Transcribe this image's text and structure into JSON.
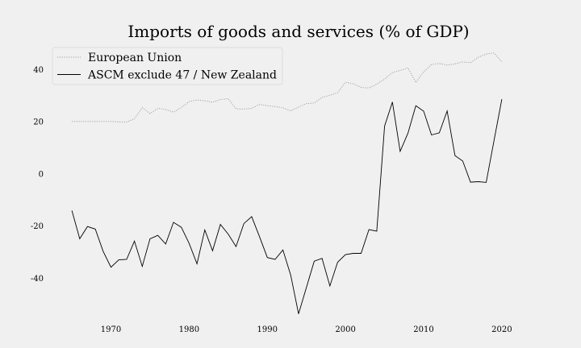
{
  "chart_data": {
    "type": "line",
    "title": "Imports of goods and services (% of GDP)",
    "xlabel": "",
    "ylabel": "",
    "xlim": [
      1962,
      2026
    ],
    "ylim": [
      -57,
      48
    ],
    "x_ticks": [
      1970,
      1980,
      1990,
      2000,
      2010,
      2020
    ],
    "y_ticks": [
      40,
      20,
      0,
      -20,
      -40
    ],
    "grid": false,
    "legend_position": "top-left",
    "x": [
      1965,
      1966,
      1967,
      1968,
      1969,
      1970,
      1971,
      1972,
      1973,
      1974,
      1975,
      1976,
      1977,
      1978,
      1979,
      1980,
      1981,
      1982,
      1983,
      1984,
      1985,
      1986,
      1987,
      1988,
      1989,
      1990,
      1991,
      1992,
      1993,
      1994,
      1995,
      1996,
      1997,
      1998,
      1999,
      2000,
      2001,
      2002,
      2003,
      2004,
      2005,
      2006,
      2007,
      2008,
      2009,
      2010,
      2011,
      2012,
      2013,
      2014,
      2015,
      2016,
      2017,
      2018,
      2019,
      2020
    ],
    "series": [
      {
        "name": "European Union",
        "style": "dotted",
        "color": "#a0a0a0",
        "values": [
          20.0,
          20.0,
          20.0,
          20.0,
          20.0,
          20.0,
          19.8,
          19.7,
          21.0,
          25.3,
          23.0,
          25.0,
          24.6,
          23.5,
          25.3,
          27.6,
          28.2,
          27.9,
          27.3,
          28.4,
          28.7,
          24.8,
          24.7,
          25.0,
          26.5,
          26.0,
          25.7,
          25.2,
          24.0,
          25.5,
          26.8,
          27.0,
          29.2,
          30.0,
          31.0,
          35.0,
          34.4,
          33.0,
          32.8,
          34.3,
          36.2,
          38.7,
          39.5,
          40.5,
          34.9,
          39.0,
          41.8,
          42.2,
          41.6,
          42.0,
          42.8,
          42.5,
          44.6,
          45.8,
          46.2,
          42.8
        ]
      },
      {
        "name": "ASCM exclude 47 / New Zealand",
        "style": "solid",
        "color": "#000000",
        "values": [
          -14.2,
          -25.0,
          -20.3,
          -21.3,
          -29.8,
          -35.9,
          -33.1,
          -32.9,
          -25.9,
          -35.6,
          -25.0,
          -23.7,
          -27.0,
          -18.7,
          -20.6,
          -26.8,
          -34.6,
          -21.6,
          -29.6,
          -19.5,
          -23.2,
          -28.0,
          -19.2,
          -16.5,
          -24.2,
          -32.2,
          -32.9,
          -29.3,
          -39.0,
          -53.8,
          -43.7,
          -33.6,
          -32.5,
          -43.1,
          -34.0,
          -31.1,
          -30.6,
          -30.6,
          -21.5,
          -22.1,
          18.2,
          27.4,
          8.5,
          15.5,
          26.0,
          23.9,
          14.8,
          15.6,
          24.0,
          6.9,
          4.8,
          -3.3,
          -3.1,
          -3.4,
          12.6,
          28.5
        ]
      }
    ]
  }
}
